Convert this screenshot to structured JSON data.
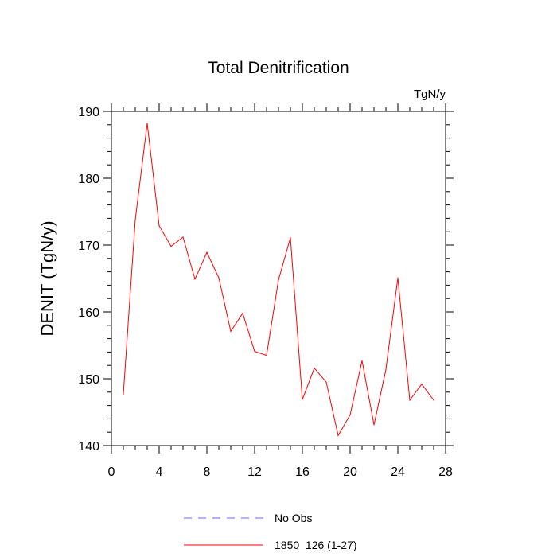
{
  "chart_data": {
    "type": "line",
    "title": "Total Denitrification",
    "units": "TgN/y",
    "xlabel": "",
    "ylabel": "DENIT  (TgN/y)",
    "xlim": [
      0,
      28
    ],
    "ylim": [
      140,
      190
    ],
    "x_ticks": [
      0,
      4,
      8,
      12,
      16,
      20,
      24,
      28
    ],
    "y_ticks": [
      140,
      150,
      160,
      170,
      180,
      190
    ],
    "x_minor_step": 1,
    "y_minor_step": 2,
    "series": [
      {
        "name": "No Obs",
        "color": "#6666ff",
        "style": "dashed",
        "x": [],
        "values": []
      },
      {
        "name": "1850_126 (1-27)",
        "color": "#ff0000",
        "style": "solid",
        "x": [
          1,
          2,
          3,
          4,
          5,
          6,
          7,
          8,
          9,
          10,
          11,
          12,
          13,
          14,
          15,
          16,
          17,
          18,
          19,
          20,
          21,
          22,
          23,
          24,
          25,
          26,
          27
        ],
        "values": [
          147.7,
          173.8,
          188.2,
          172.9,
          169.8,
          171.2,
          164.9,
          168.9,
          165.1,
          157.1,
          159.8,
          154.1,
          153.5,
          164.8,
          171.1,
          146.9,
          151.6,
          149.5,
          141.5,
          144.6,
          152.7,
          143.1,
          151.4,
          165.1,
          146.8,
          149.2,
          146.8
        ]
      }
    ]
  }
}
